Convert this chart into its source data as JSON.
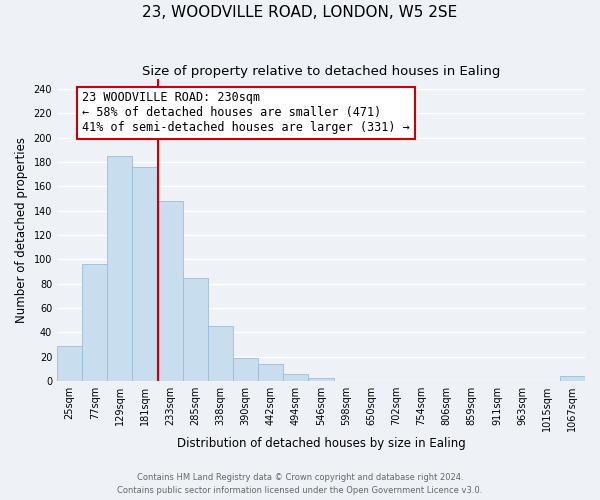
{
  "title": "23, WOODVILLE ROAD, LONDON, W5 2SE",
  "subtitle": "Size of property relative to detached houses in Ealing",
  "xlabel": "Distribution of detached houses by size in Ealing",
  "ylabel": "Number of detached properties",
  "bar_color": "#c8dded",
  "bar_edge_color": "#9bbcd6",
  "bin_labels": [
    "25sqm",
    "77sqm",
    "129sqm",
    "181sqm",
    "233sqm",
    "285sqm",
    "338sqm",
    "390sqm",
    "442sqm",
    "494sqm",
    "546sqm",
    "598sqm",
    "650sqm",
    "702sqm",
    "754sqm",
    "806sqm",
    "859sqm",
    "911sqm",
    "963sqm",
    "1015sqm",
    "1067sqm"
  ],
  "bar_heights": [
    29,
    96,
    185,
    176,
    148,
    85,
    45,
    19,
    14,
    6,
    3,
    0,
    0,
    0,
    0,
    0,
    0,
    0,
    0,
    0,
    4
  ],
  "vline_color": "#cc0000",
  "annotation_line1": "23 WOODVILLE ROAD: 230sqm",
  "annotation_line2": "← 58% of detached houses are smaller (471)",
  "annotation_line3": "41% of semi-detached houses are larger (331) →",
  "box_edge_color": "#cc0000",
  "ylim": [
    0,
    248
  ],
  "yticks": [
    0,
    20,
    40,
    60,
    80,
    100,
    120,
    140,
    160,
    180,
    200,
    220,
    240
  ],
  "footer_line1": "Contains HM Land Registry data © Crown copyright and database right 2024.",
  "footer_line2": "Contains public sector information licensed under the Open Government Licence v3.0.",
  "background_color": "#eef2f7",
  "grid_color": "#ffffff",
  "title_fontsize": 11,
  "subtitle_fontsize": 9.5,
  "axis_label_fontsize": 8.5,
  "tick_fontsize": 7,
  "annotation_fontsize": 8.5,
  "footer_fontsize": 6
}
